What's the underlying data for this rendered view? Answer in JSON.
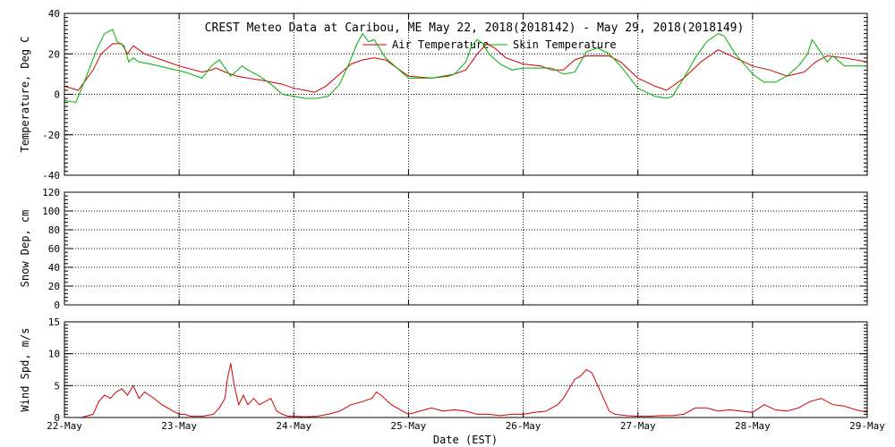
{
  "title": "CREST Meteo Data at Caribou, ME   May 22, 2018(2018142) - May 29, 2018(2018149)",
  "xlabel": "Date (EST)",
  "x_tick_labels": [
    "22-May",
    "23-May",
    "24-May",
    "25-May",
    "26-May",
    "27-May",
    "28-May",
    "29-May"
  ],
  "colors": {
    "air": "#d00000",
    "skin": "#00b000",
    "axis": "#000000"
  },
  "chart_data": [
    {
      "type": "line",
      "ylabel": "Temperature, Deg C",
      "xlim": [
        0,
        7
      ],
      "ylim": [
        -40,
        40
      ],
      "y_ticks": [
        -40,
        -20,
        0,
        20,
        40
      ],
      "grid": true,
      "legend_position": "top-center",
      "series": [
        {
          "name": "Air Temperature",
          "color": "#d00000",
          "x": [
            0.0,
            0.12,
            0.25,
            0.32,
            0.42,
            0.5,
            0.55,
            0.6,
            0.7,
            0.85,
            1.0,
            1.2,
            1.28,
            1.32,
            1.4,
            1.5,
            1.6,
            1.72,
            1.9,
            2.0,
            2.1,
            2.18,
            2.28,
            2.4,
            2.5,
            2.6,
            2.7,
            2.8,
            3.0,
            3.2,
            3.35,
            3.5,
            3.6,
            3.68,
            3.75,
            3.85,
            4.0,
            4.15,
            4.25,
            4.35,
            4.45,
            4.55,
            4.65,
            4.75,
            4.85,
            5.0,
            5.15,
            5.25,
            5.4,
            5.55,
            5.7,
            5.85,
            6.0,
            6.15,
            6.3,
            6.45,
            6.55,
            6.65,
            6.8,
            7.0
          ],
          "y": [
            4,
            2,
            12,
            20,
            25,
            25,
            20,
            24,
            20,
            17,
            14,
            11,
            12,
            13,
            11,
            9,
            8,
            7,
            5,
            3,
            2,
            1,
            4,
            10,
            15,
            17,
            18,
            17,
            9,
            8,
            9,
            12,
            20,
            25,
            23,
            18,
            15,
            14,
            12,
            12,
            17,
            19,
            19,
            19,
            16,
            8,
            4,
            2,
            8,
            16,
            22,
            18,
            14,
            12,
            9,
            11,
            16,
            19,
            18,
            16
          ]
        },
        {
          "name": "Skin Temperature",
          "color": "#00b000",
          "x": [
            0.0,
            0.1,
            0.2,
            0.28,
            0.35,
            0.42,
            0.46,
            0.52,
            0.56,
            0.6,
            0.65,
            0.75,
            0.9,
            1.05,
            1.2,
            1.28,
            1.35,
            1.4,
            1.45,
            1.55,
            1.6,
            1.7,
            1.8,
            1.9,
            2.0,
            2.1,
            2.2,
            2.3,
            2.4,
            2.48,
            2.55,
            2.6,
            2.65,
            2.7,
            2.8,
            3.0,
            3.2,
            3.4,
            3.5,
            3.55,
            3.6,
            3.65,
            3.7,
            3.8,
            3.9,
            4.0,
            4.15,
            4.25,
            4.35,
            4.45,
            4.55,
            4.65,
            4.75,
            4.85,
            5.0,
            5.15,
            5.25,
            5.3,
            5.4,
            5.5,
            5.6,
            5.7,
            5.75,
            5.85,
            6.0,
            6.1,
            6.2,
            6.3,
            6.4,
            6.48,
            6.52,
            6.58,
            6.65,
            6.7,
            6.8,
            7.0
          ],
          "y": [
            -3,
            -4,
            10,
            22,
            30,
            32,
            26,
            24,
            16,
            18,
            16,
            15,
            13,
            11,
            8,
            14,
            17,
            13,
            9,
            14,
            12,
            9,
            5,
            0,
            -1,
            -2,
            -2,
            -1,
            5,
            15,
            25,
            30,
            26,
            27,
            18,
            8,
            8,
            10,
            16,
            24,
            27,
            25,
            20,
            15,
            12,
            13,
            13,
            13,
            10,
            11,
            21,
            23,
            20,
            14,
            3,
            -1,
            -2,
            -1,
            8,
            18,
            26,
            30,
            29,
            20,
            10,
            6,
            6,
            9,
            14,
            20,
            27,
            22,
            16,
            19,
            14,
            14
          ]
        }
      ]
    },
    {
      "type": "line",
      "ylabel": "Snow Dep, cm",
      "xlim": [
        0,
        7
      ],
      "ylim": [
        0,
        120
      ],
      "y_ticks": [
        0,
        20,
        40,
        60,
        80,
        100,
        120
      ],
      "grid": true,
      "series": []
    },
    {
      "type": "line",
      "ylabel": "Wind Spd, m/s",
      "xlim": [
        0,
        7
      ],
      "ylim": [
        0,
        15
      ],
      "y_ticks": [
        0,
        5,
        10,
        15
      ],
      "grid": true,
      "series": [
        {
          "color": "#d00000",
          "x": [
            0.0,
            0.15,
            0.25,
            0.3,
            0.35,
            0.4,
            0.45,
            0.5,
            0.55,
            0.6,
            0.65,
            0.7,
            0.78,
            0.85,
            0.9,
            0.95,
            1.0,
            1.05,
            1.1,
            1.2,
            1.3,
            1.35,
            1.4,
            1.42,
            1.45,
            1.48,
            1.52,
            1.56,
            1.6,
            1.65,
            1.7,
            1.75,
            1.8,
            1.85,
            1.9,
            1.95,
            2.0,
            2.1,
            2.2,
            2.3,
            2.4,
            2.5,
            2.6,
            2.68,
            2.72,
            2.76,
            2.85,
            2.95,
            3.0,
            3.1,
            3.2,
            3.3,
            3.4,
            3.5,
            3.6,
            3.7,
            3.8,
            3.9,
            4.0,
            4.1,
            4.2,
            4.3,
            4.35,
            4.4,
            4.45,
            4.5,
            4.55,
            4.6,
            4.65,
            4.7,
            4.75,
            4.8,
            4.9,
            5.0,
            5.1,
            5.2,
            5.3,
            5.4,
            5.5,
            5.6,
            5.7,
            5.8,
            5.9,
            6.0,
            6.1,
            6.2,
            6.3,
            6.4,
            6.5,
            6.6,
            6.7,
            6.8,
            6.9,
            7.0
          ],
          "y": [
            0,
            0,
            0.5,
            2.5,
            3.5,
            3,
            4,
            4.5,
            3.5,
            5,
            3,
            4,
            3,
            2,
            1.5,
            1,
            0.5,
            0.5,
            0.2,
            0.2,
            0.5,
            1.5,
            3,
            6,
            8.5,
            5,
            2,
            3.5,
            2,
            3,
            2,
            2.5,
            3,
            1,
            0.5,
            0.2,
            0.2,
            0.1,
            0.2,
            0.5,
            1,
            2,
            2.5,
            3,
            4,
            3.5,
            2,
            1,
            0.5,
            1,
            1.5,
            1,
            1.2,
            1,
            0.5,
            0.5,
            0.3,
            0.5,
            0.5,
            0.8,
            1,
            2,
            3,
            4.5,
            6,
            6.5,
            7.5,
            7,
            5,
            3,
            1,
            0.5,
            0.3,
            0.2,
            0.2,
            0.3,
            0.3,
            0.5,
            1.5,
            1.5,
            1,
            1.2,
            1,
            0.8,
            2,
            1.2,
            1,
            1.5,
            2.5,
            3,
            2,
            1.8,
            1.2,
            0.8
          ]
        }
      ]
    }
  ]
}
